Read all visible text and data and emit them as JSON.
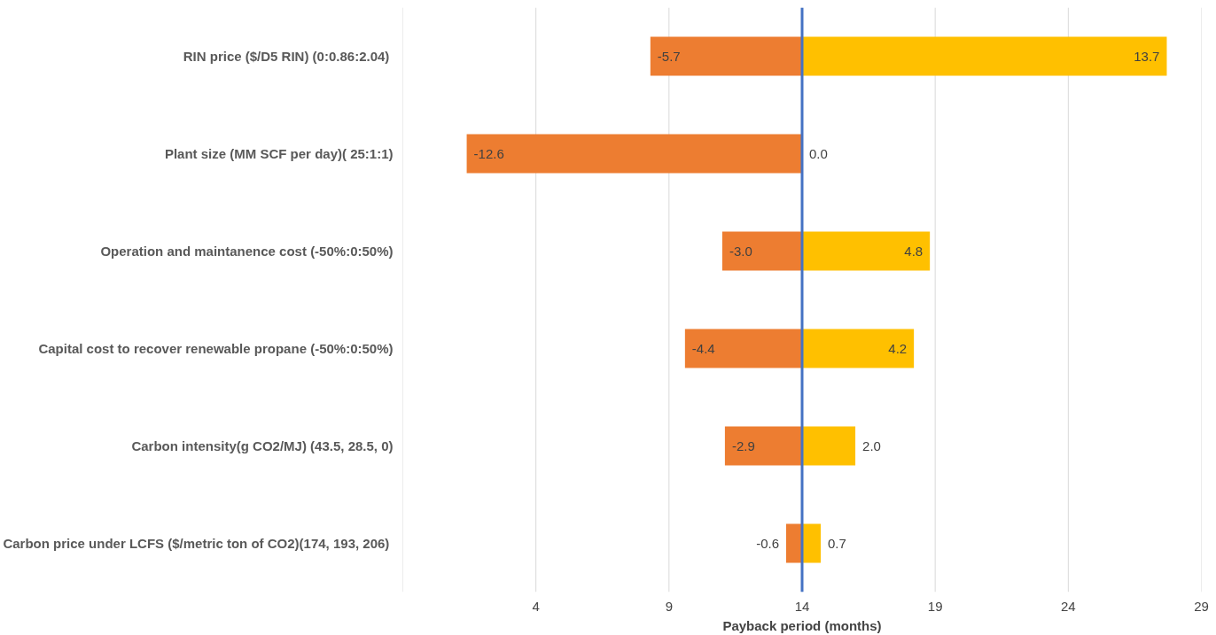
{
  "chart_data": {
    "type": "bar",
    "orientation": "horizontal",
    "xlabel": "Payback period (months)",
    "categories": [
      "RIN price  ($/D5 RIN) (0:0.86:2.04)",
      "Plant size (MM SCF per day)( 25:1:1)",
      "Operation and maintanence cost (-50%:0:50%)",
      "Capital cost to recover renewable propane (-50%:0:50%)",
      "Carbon intensity(g CO2/MJ) (43.5, 28.5, 0)",
      "Carbon price under LCFS  ($/metric ton of CO2)(174, 193, 206)"
    ],
    "series": [
      {
        "color": "#ed7d31",
        "base": [
          14,
          14,
          14,
          14,
          14,
          14
        ],
        "values": [
          -5.7,
          -12.6,
          -3.0,
          -4.4,
          -2.9,
          -0.6
        ],
        "value_labels": [
          "-5.7",
          "-12.6",
          "-3.0",
          "-4.4",
          "-2.9",
          "-0.6"
        ]
      },
      {
        "color": "#ffc000",
        "base": [
          14,
          null,
          14,
          14,
          14,
          14
        ],
        "values": [
          13.7,
          null,
          4.8,
          4.2,
          2.0,
          0.7
        ],
        "value_labels": [
          "13.7",
          null,
          "4.8",
          "4.2",
          "2.0",
          "0.7"
        ]
      }
    ],
    "annotations": [
      {
        "text": "0.0",
        "x": 14,
        "y": "Plant size (MM SCF per day)( 25:1:1)"
      }
    ],
    "xlim": [
      -1,
      29
    ],
    "xticks": [
      {
        "value": -1,
        "label": null
      },
      4,
      9,
      14,
      19,
      24,
      29
    ],
    "ref_lines": [
      {
        "axis": "x",
        "value": 14,
        "label": null,
        "color": "#4472c4"
      }
    ],
    "grid": "x"
  }
}
